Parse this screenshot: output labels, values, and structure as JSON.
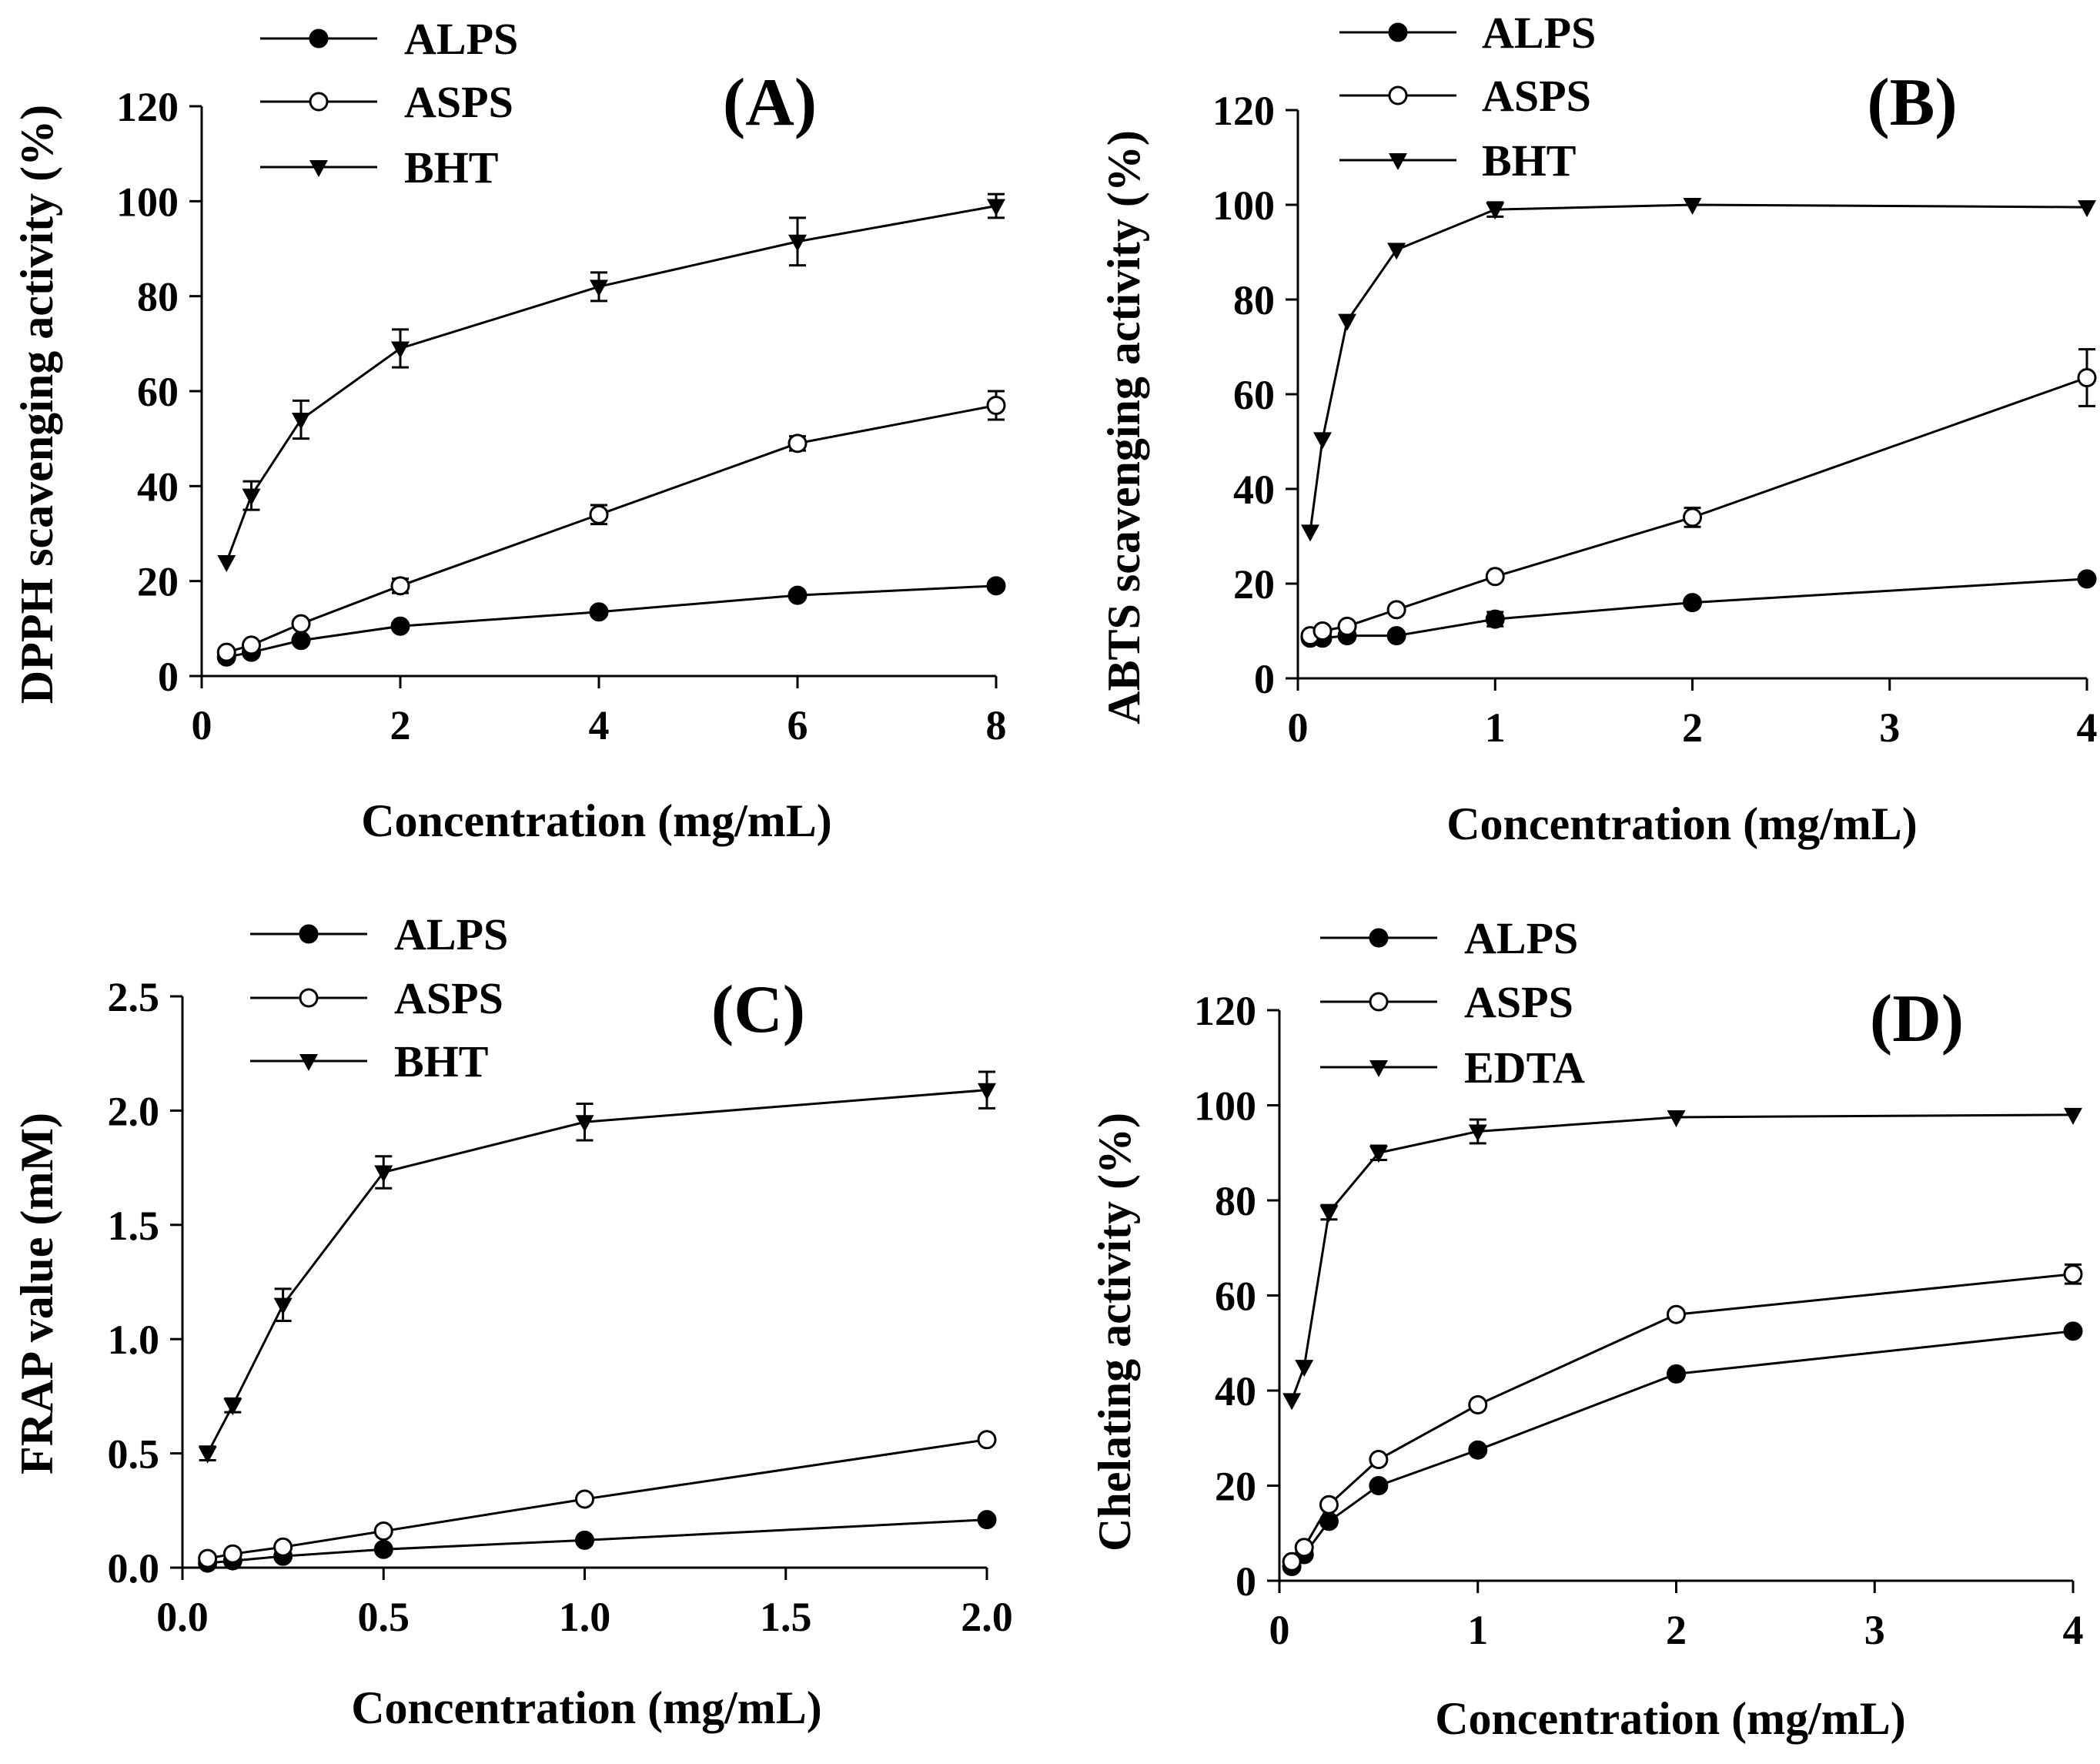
{
  "figure": {
    "panels": [
      {
        "id": "A",
        "tag": "(A)",
        "xlabel": "Concentration (mg/mL)",
        "ylabel": "DPPH scavenging activity (%)"
      },
      {
        "id": "B",
        "tag": "(B)",
        "xlabel": "Concentration (mg/mL)",
        "ylabel": "ABTS scavenging activity (%)"
      },
      {
        "id": "C",
        "tag": "(C)",
        "xlabel": "Concentration (mg/mL)",
        "ylabel": "FRAP value (mM)"
      },
      {
        "id": "D",
        "tag": "(D)",
        "xlabel": "Concentration (mg/mL)",
        "ylabel": "Chelating activity (%)"
      }
    ]
  },
  "chart_data": [
    {
      "type": "line",
      "title": "(A)",
      "xlabel": "Concentration (mg/mL)",
      "ylabel": "DPPH scavenging activity (%)",
      "xlim": [
        0,
        8
      ],
      "ylim": [
        0,
        120
      ],
      "xticks": [
        0,
        2,
        4,
        6,
        8
      ],
      "xtick_labels": [
        "0",
        "2",
        "4",
        "6",
        "8"
      ],
      "yticks": [
        0,
        20,
        40,
        60,
        80,
        100,
        120
      ],
      "ytick_labels": [
        "0",
        "20",
        "40",
        "60",
        "80",
        "100",
        "120"
      ],
      "legend_position": "top-left",
      "series": [
        {
          "name": "ALPS",
          "marker": "filled-circle",
          "x": [
            0.25,
            0.5,
            1,
            2,
            4,
            6,
            8
          ],
          "y": [
            4,
            5,
            7.5,
            10.5,
            13.5,
            17,
            19
          ],
          "err": [
            0,
            0,
            0,
            0,
            0,
            0,
            0
          ]
        },
        {
          "name": "ASPS",
          "marker": "open-circle",
          "x": [
            0.25,
            0.5,
            1,
            2,
            4,
            6,
            8
          ],
          "y": [
            5,
            6.5,
            11,
            19,
            34,
            49,
            57
          ],
          "err": [
            0,
            0,
            0,
            1.5,
            2,
            1.5,
            3
          ]
        },
        {
          "name": "BHT",
          "marker": "filled-triangle-down",
          "x": [
            0.25,
            0.5,
            1,
            2,
            4,
            6,
            8
          ],
          "y": [
            24,
            38,
            54,
            69,
            82,
            91.5,
            99
          ],
          "err": [
            0,
            3,
            4,
            4,
            3,
            5,
            2.5
          ]
        }
      ]
    },
    {
      "type": "line",
      "title": "(B)",
      "xlabel": "Concentration (mg/mL)",
      "ylabel": "ABTS scavenging activity (%)",
      "xlim": [
        0,
        4
      ],
      "ylim": [
        0,
        120
      ],
      "xticks": [
        0,
        1,
        2,
        3,
        4
      ],
      "xtick_labels": [
        "0",
        "1",
        "2",
        "3",
        "4"
      ],
      "yticks": [
        0,
        20,
        40,
        60,
        80,
        100,
        120
      ],
      "ytick_labels": [
        "0",
        "20",
        "40",
        "60",
        "80",
        "100",
        "120"
      ],
      "legend_position": "top-left",
      "series": [
        {
          "name": "ALPS",
          "marker": "filled-circle",
          "x": [
            0.0625,
            0.125,
            0.25,
            0.5,
            1,
            2,
            4
          ],
          "y": [
            8.5,
            8.5,
            9,
            9,
            12.5,
            16,
            21
          ],
          "err": [
            0,
            0,
            0,
            0,
            1.5,
            0,
            0
          ]
        },
        {
          "name": "ASPS",
          "marker": "open-circle",
          "x": [
            0.0625,
            0.125,
            0.25,
            0.5,
            1,
            2,
            4
          ],
          "y": [
            9,
            10,
            11,
            14.5,
            21.5,
            34,
            63.5
          ],
          "err": [
            0,
            0,
            0,
            0,
            0,
            2,
            6
          ]
        },
        {
          "name": "BHT",
          "marker": "filled-triangle-down",
          "x": [
            0.0625,
            0.125,
            0.25,
            0.5,
            1,
            2,
            4
          ],
          "y": [
            31,
            50.5,
            75.5,
            90.5,
            99,
            100,
            99.5
          ],
          "err": [
            0,
            0,
            0,
            0,
            1.5,
            0,
            0
          ]
        }
      ]
    },
    {
      "type": "line",
      "title": "(C)",
      "xlabel": "Concentration (mg/mL)",
      "ylabel": "FRAP value (mM)",
      "xlim": [
        0,
        2
      ],
      "ylim": [
        0,
        2.5
      ],
      "xticks": [
        0,
        0.5,
        1,
        1.5,
        2
      ],
      "xtick_labels": [
        "0.0",
        "0.5",
        "1.0",
        "1.5",
        "2.0"
      ],
      "yticks": [
        0,
        0.5,
        1,
        1.5,
        2,
        2.5
      ],
      "ytick_labels": [
        "0.0",
        "0.5",
        "1.0",
        "1.5",
        "2.0",
        "2.5"
      ],
      "legend_position": "top-left",
      "series": [
        {
          "name": "ALPS",
          "marker": "filled-circle",
          "x": [
            0.0625,
            0.125,
            0.25,
            0.5,
            1,
            2
          ],
          "y": [
            0.02,
            0.03,
            0.05,
            0.08,
            0.12,
            0.21
          ],
          "err": [
            0,
            0,
            0,
            0,
            0,
            0
          ]
        },
        {
          "name": "ASPS",
          "marker": "open-circle",
          "x": [
            0.0625,
            0.125,
            0.25,
            0.5,
            1,
            2
          ],
          "y": [
            0.04,
            0.06,
            0.09,
            0.16,
            0.3,
            0.56
          ],
          "err": [
            0,
            0,
            0,
            0,
            0,
            0
          ]
        },
        {
          "name": "BHT",
          "marker": "filled-triangle-down",
          "x": [
            0.0625,
            0.125,
            0.25,
            0.5,
            1,
            2
          ],
          "y": [
            0.5,
            0.71,
            1.15,
            1.73,
            1.95,
            2.09
          ],
          "err": [
            0.03,
            0.03,
            0.07,
            0.07,
            0.08,
            0.08
          ]
        }
      ]
    },
    {
      "type": "line",
      "title": "(D)",
      "xlabel": "Concentration (mg/mL)",
      "ylabel": "Chelating activity (%)",
      "xlim": [
        0,
        4
      ],
      "ylim": [
        0,
        120
      ],
      "xticks": [
        0,
        1,
        2,
        3,
        4
      ],
      "xtick_labels": [
        "0",
        "1",
        "2",
        "3",
        "4"
      ],
      "yticks": [
        0,
        20,
        40,
        60,
        80,
        100,
        120
      ],
      "ytick_labels": [
        "0",
        "20",
        "40",
        "60",
        "80",
        "100",
        "120"
      ],
      "legend_position": "top-left",
      "series": [
        {
          "name": "ALPS",
          "marker": "filled-circle",
          "x": [
            0.0625,
            0.125,
            0.25,
            0.5,
            1,
            2,
            4
          ],
          "y": [
            3,
            5.5,
            12.5,
            20,
            27.5,
            43.5,
            52.5
          ],
          "err": [
            0,
            0,
            0,
            0,
            0,
            0,
            0
          ]
        },
        {
          "name": "ASPS",
          "marker": "open-circle",
          "x": [
            0.0625,
            0.125,
            0.25,
            0.5,
            1,
            2,
            4
          ],
          "y": [
            4,
            7,
            16,
            25.5,
            37,
            56,
            64.5
          ],
          "err": [
            0,
            0,
            0,
            0,
            0,
            0,
            2
          ]
        },
        {
          "name": "EDTA",
          "marker": "filled-triangle-down",
          "x": [
            0.0625,
            0.125,
            0.25,
            0.5,
            1,
            2,
            4
          ],
          "y": [
            38,
            45,
            77.5,
            90,
            94.5,
            97.5,
            98
          ],
          "err": [
            0,
            0,
            1.5,
            1.5,
            2.5,
            0,
            0
          ]
        }
      ]
    }
  ]
}
